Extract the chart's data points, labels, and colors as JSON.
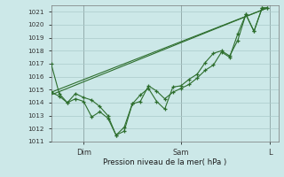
{
  "background_color": "#cce8e8",
  "grid_color": "#aacaca",
  "line_color": "#2d6e2d",
  "ylabel_text": "Pression niveau de la mer( hPa )",
  "ylim": [
    1011,
    1021.5
  ],
  "yticks": [
    1011,
    1012,
    1013,
    1014,
    1015,
    1016,
    1017,
    1018,
    1019,
    1020,
    1021
  ],
  "xlim": [
    0,
    168
  ],
  "xtick_positions": [
    24,
    96,
    162
  ],
  "xtick_labels": [
    "Dim",
    "Sam",
    "L"
  ],
  "vline_positions": [
    24,
    96,
    162
  ],
  "line1_x": [
    0,
    6,
    12,
    18,
    24,
    30,
    36,
    42,
    48,
    54,
    60,
    66,
    72,
    78,
    84,
    90,
    96,
    102,
    108,
    114,
    120,
    126,
    132,
    138,
    144,
    150,
    156,
    160
  ],
  "line1_y": [
    1017.0,
    1014.7,
    1014.0,
    1014.7,
    1014.4,
    1014.2,
    1013.7,
    1013.0,
    1011.5,
    1011.8,
    1013.9,
    1014.1,
    1015.3,
    1014.9,
    1014.3,
    1014.8,
    1015.1,
    1015.4,
    1015.9,
    1016.5,
    1016.9,
    1017.9,
    1017.5,
    1019.3,
    1020.8,
    1019.5,
    1021.3,
    1021.3
  ],
  "line2_x": [
    0,
    6,
    12,
    18,
    24,
    30,
    36,
    42,
    48,
    54,
    60,
    66,
    72,
    78,
    84,
    90,
    96,
    102,
    108,
    114,
    120,
    126,
    132,
    138,
    144,
    150,
    156,
    160
  ],
  "line2_y": [
    1014.8,
    1014.5,
    1014.0,
    1014.3,
    1014.1,
    1012.9,
    1013.3,
    1012.8,
    1011.5,
    1012.1,
    1013.9,
    1014.6,
    1015.1,
    1014.1,
    1013.5,
    1015.2,
    1015.3,
    1015.8,
    1016.2,
    1017.1,
    1017.8,
    1018.0,
    1017.6,
    1018.8,
    1020.8,
    1019.5,
    1021.3,
    1021.3
  ],
  "line3_x": [
    0,
    160
  ],
  "line3_y": [
    1014.8,
    1021.3
  ],
  "line4_x": [
    0,
    160
  ],
  "line4_y": [
    1014.6,
    1021.3
  ]
}
